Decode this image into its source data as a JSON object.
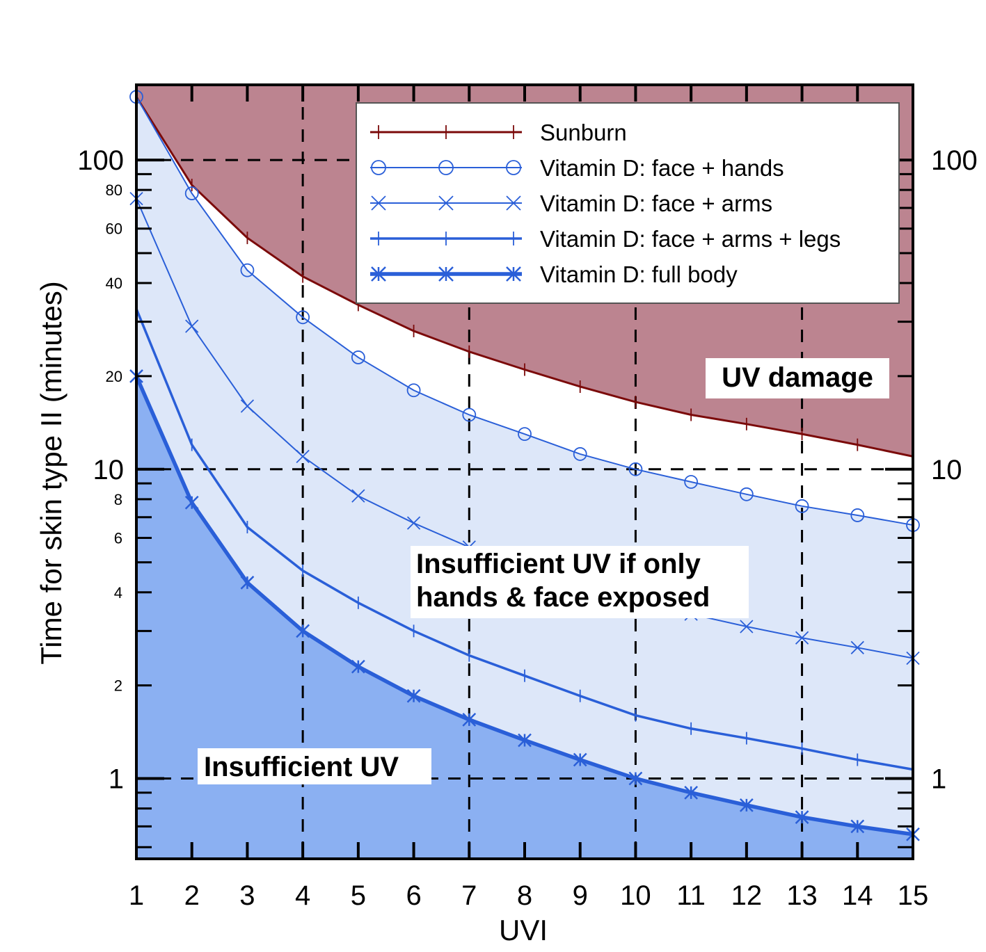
{
  "chart_data": {
    "type": "line",
    "xlabel": "UVI",
    "ylabel": "Time for skin  type II (minutes)",
    "xlim": [
      1,
      15
    ],
    "ylim": [
      0.55,
      175
    ],
    "yscale": "log",
    "x_ticks": [
      "1",
      "2",
      "3",
      "4",
      "5",
      "6",
      "7",
      "8",
      "9",
      "10",
      "11",
      "12",
      "13",
      "14",
      "15"
    ],
    "y_major_ticks": [
      "1",
      "10",
      "100"
    ],
    "y_minor_ticks": [
      "2",
      "4",
      "6",
      "8",
      "20",
      "40",
      "60",
      "80"
    ],
    "grid": {
      "x_dashed_at": [
        4,
        7,
        10,
        13
      ],
      "y_dashed_at": [
        1,
        10,
        100
      ]
    },
    "legend_position": "top-right",
    "x": [
      1,
      2,
      3,
      4,
      5,
      6,
      7,
      8,
      9,
      10,
      11,
      12,
      13,
      14,
      15
    ],
    "series": [
      {
        "name": "Sunburn",
        "marker": "plus",
        "color": "#7b0a0a",
        "values": [
          160,
          83,
          56,
          42,
          34,
          28,
          24,
          21,
          18.5,
          16.5,
          15,
          14,
          13,
          12,
          11
        ]
      },
      {
        "name": "Vitamin D: face + hands",
        "marker": "circle",
        "color": "#2a5fd8",
        "values": [
          160,
          78,
          44,
          31,
          23,
          18,
          15,
          13,
          11.2,
          10,
          9.1,
          8.3,
          7.6,
          7.1,
          6.6
        ]
      },
      {
        "name": "Vitamin D: face + arms",
        "marker": "x",
        "color": "#2a5fd8",
        "values": [
          75,
          29,
          16,
          11,
          8.2,
          6.7,
          5.6,
          4.8,
          4.2,
          3.7,
          3.4,
          3.1,
          2.85,
          2.65,
          2.45
        ]
      },
      {
        "name": "Vitamin D: face + arms + legs",
        "marker": "plus",
        "color": "#2a5fd8",
        "values": [
          33,
          12,
          6.5,
          4.7,
          3.7,
          3.0,
          2.5,
          2.15,
          1.85,
          1.6,
          1.45,
          1.35,
          1.25,
          1.15,
          1.07
        ]
      },
      {
        "name": "Vitamin D: full body",
        "marker": "asterisk",
        "color": "#2a5fd8",
        "values": [
          20,
          7.8,
          4.3,
          3.0,
          2.3,
          1.85,
          1.55,
          1.33,
          1.15,
          1.0,
          0.9,
          0.82,
          0.75,
          0.7,
          0.66
        ]
      }
    ],
    "regions": {
      "uv_damage_color": "#bc8490",
      "insufficient_color": "#8bb0f2",
      "between_color": "#dde7f9"
    },
    "annotations": [
      "UV damage",
      "Insufficient UV if only",
      "hands & face exposed",
      "Insufficient UV"
    ]
  }
}
